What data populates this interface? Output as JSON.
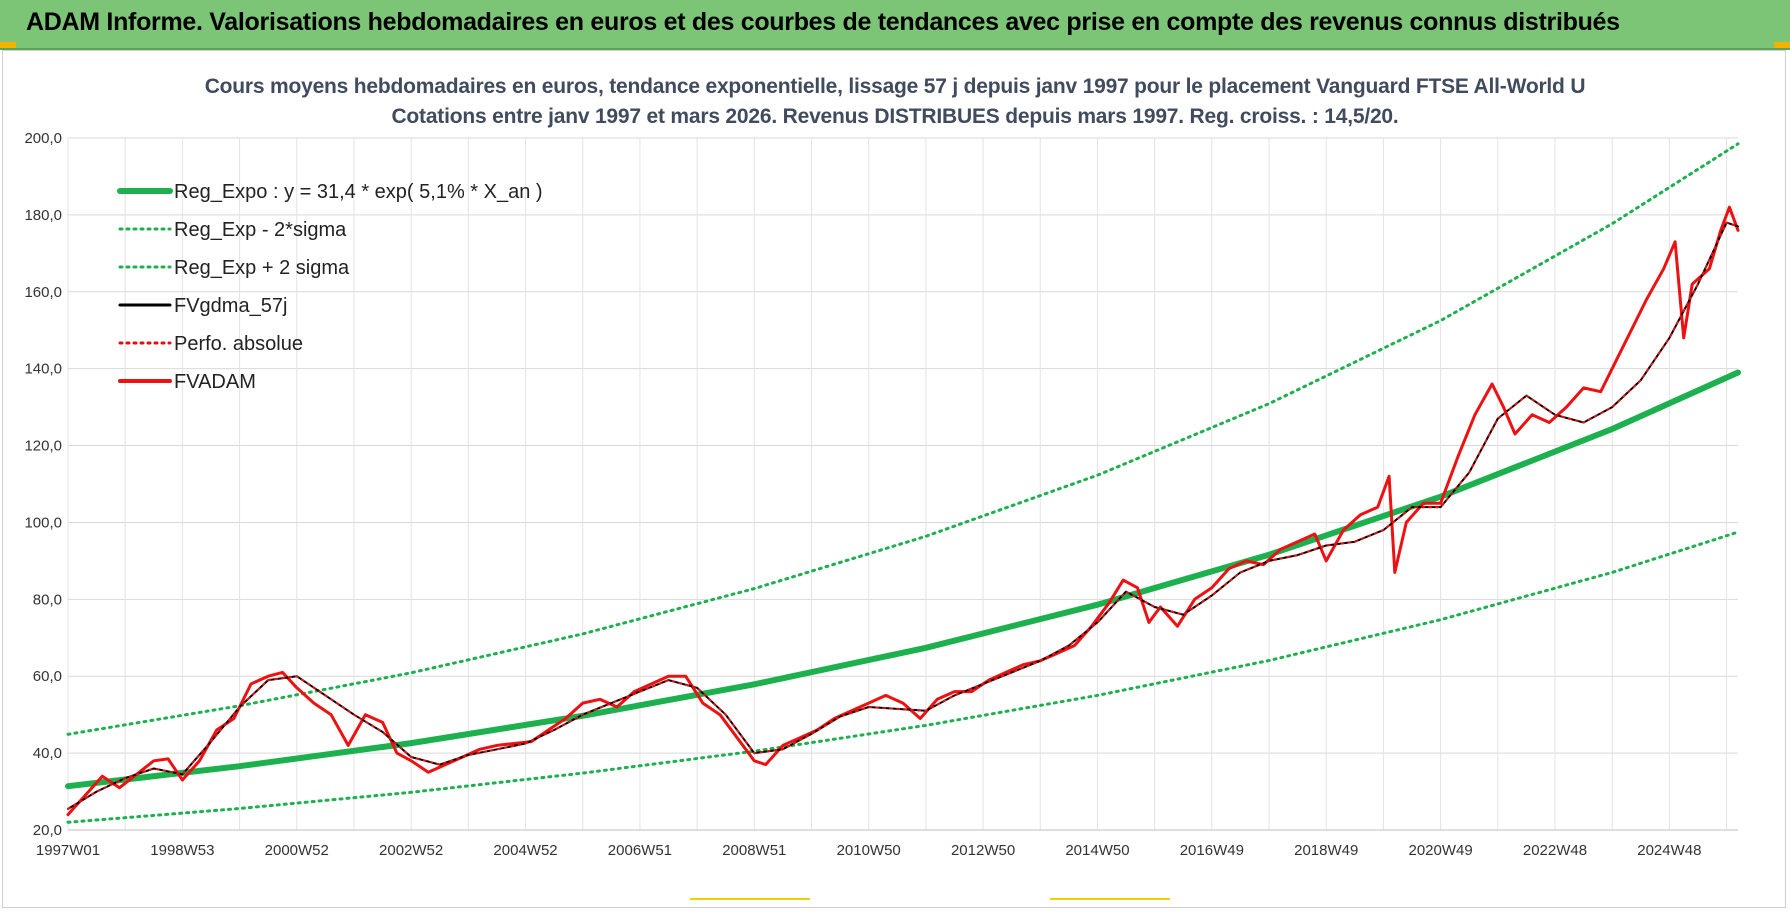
{
  "banner": {
    "title": "ADAM Informe. Valorisations hebdomadaires en euros et des courbes de tendances avec prise en compte des revenus connus distribués",
    "color": "#7cc576"
  },
  "chart_data": {
    "type": "line",
    "title": "Cours moyens hebdomadaires en euros, tendance exponentielle, lissage 57 j depuis janv 1997 pour le placement Vanguard FTSE All-World U",
    "subtitle": "Cotations entre janv 1997 et mars 2026. Revenus DISTRIBUES depuis mars 1997. Reg. croiss. : 14,5/20.",
    "xlabel": "",
    "ylabel": "",
    "ylim": [
      20,
      200
    ],
    "yticks": [
      "20,0",
      "40,0",
      "60,0",
      "80,0",
      "100,0",
      "120,0",
      "140,0",
      "160,0",
      "180,0",
      "200,0"
    ],
    "xlim": [
      1997.0,
      2026.2
    ],
    "xticks": [
      {
        "label": "1997W01",
        "x": 1997.0
      },
      {
        "label": "1998W53",
        "x": 1999.0
      },
      {
        "label": "2000W52",
        "x": 2001.0
      },
      {
        "label": "2002W52",
        "x": 2003.0
      },
      {
        "label": "2004W52",
        "x": 2005.0
      },
      {
        "label": "2006W51",
        "x": 2007.0
      },
      {
        "label": "2008W51",
        "x": 2009.0
      },
      {
        "label": "2010W50",
        "x": 2011.0
      },
      {
        "label": "2012W50",
        "x": 2013.0
      },
      {
        "label": "2014W50",
        "x": 2015.0
      },
      {
        "label": "2016W49",
        "x": 2017.0
      },
      {
        "label": "2018W49",
        "x": 2019.0
      },
      {
        "label": "2020W49",
        "x": 2021.0
      },
      {
        "label": "2022W48",
        "x": 2023.0
      },
      {
        "label": "2024W48",
        "x": 2025.0
      }
    ],
    "grid": true,
    "legend_position": "top-left",
    "series": [
      {
        "name": "Reg_Expo : y = 31,4 * exp( 5,1% *  X_an )",
        "color": "#1db04e",
        "style": "solid-thick",
        "x": [
          1997,
          2000,
          2003,
          2006,
          2009,
          2012,
          2015,
          2018,
          2021,
          2024,
          2026.2
        ],
        "y": [
          31.4,
          36.6,
          42.6,
          49.7,
          57.9,
          67.4,
          78.6,
          91.6,
          106.7,
          124.3,
          139.0
        ]
      },
      {
        "name": "Reg_Exp - 2*sigma",
        "color": "#1db04e",
        "style": "dotted",
        "x": [
          1997,
          2000,
          2003,
          2006,
          2009,
          2012,
          2015,
          2018,
          2021,
          2024,
          2026.2
        ],
        "y": [
          22.0,
          25.6,
          29.8,
          34.8,
          40.5,
          47.2,
          55.0,
          64.1,
          74.7,
          87.0,
          97.5
        ]
      },
      {
        "name": "Reg_Exp + 2 sigma",
        "color": "#1db04e",
        "style": "dotted",
        "x": [
          1997,
          2000,
          2003,
          2006,
          2009,
          2012,
          2015,
          2018,
          2021,
          2024,
          2026.2
        ],
        "y": [
          44.9,
          52.3,
          60.9,
          71.0,
          82.8,
          96.4,
          112.3,
          130.9,
          152.5,
          177.7,
          198.5
        ]
      },
      {
        "name": "FVgdma_57j",
        "color": "#000000",
        "style": "solid",
        "x": [
          1997.0,
          1997.5,
          1998.0,
          1998.5,
          1999.0,
          1999.5,
          2000.0,
          2000.5,
          2001.0,
          2001.5,
          2002.0,
          2002.5,
          2003.0,
          2003.5,
          2004.0,
          2004.5,
          2005.0,
          2005.5,
          2006.0,
          2006.5,
          2007.0,
          2007.5,
          2008.0,
          2008.5,
          2009.0,
          2009.5,
          2010.0,
          2010.5,
          2011.0,
          2011.5,
          2012.0,
          2012.5,
          2013.0,
          2013.5,
          2014.0,
          2014.5,
          2015.0,
          2015.5,
          2016.0,
          2016.5,
          2017.0,
          2017.5,
          2018.0,
          2018.5,
          2019.0,
          2019.5,
          2020.0,
          2020.5,
          2021.0,
          2021.5,
          2022.0,
          2022.5,
          2023.0,
          2023.5,
          2024.0,
          2024.5,
          2025.0,
          2025.5,
          2026.0,
          2026.2
        ],
        "y": [
          25.5,
          30.0,
          33.5,
          36.0,
          34.5,
          43.0,
          52.0,
          59.0,
          60.0,
          55.0,
          50.0,
          45.5,
          39.0,
          37.0,
          39.5,
          41.0,
          42.5,
          46.0,
          50.0,
          53.0,
          56.0,
          59.0,
          57.0,
          50.0,
          40.0,
          41.0,
          45.0,
          49.5,
          52.0,
          51.5,
          51.0,
          55.0,
          58.0,
          61.0,
          64.0,
          68.0,
          74.0,
          82.0,
          78.0,
          76.0,
          81.0,
          87.0,
          90.0,
          91.5,
          94.0,
          95.0,
          98.0,
          104.0,
          104.0,
          113.0,
          127.0,
          133.0,
          128.0,
          126.0,
          130.0,
          137.0,
          148.0,
          162.0,
          178.0,
          177.0
        ]
      },
      {
        "name": "Perfo. absolue",
        "color": "#e01010",
        "style": "dotted",
        "x": [
          1997.0,
          1997.5,
          1998.0,
          1998.5,
          1999.0,
          1999.5,
          2000.0,
          2000.5,
          2001.0,
          2001.5,
          2002.0,
          2002.5,
          2003.0,
          2003.5,
          2004.0,
          2004.5,
          2005.0,
          2005.5,
          2006.0,
          2006.5,
          2007.0,
          2007.5,
          2008.0,
          2008.5,
          2009.0,
          2009.5,
          2010.0,
          2010.5,
          2011.0,
          2011.5,
          2012.0,
          2012.5,
          2013.0,
          2013.5,
          2014.0,
          2014.5,
          2015.0,
          2015.5,
          2016.0,
          2016.5,
          2017.0,
          2017.5,
          2018.0,
          2018.5,
          2019.0,
          2019.5,
          2020.0,
          2020.5,
          2021.0,
          2021.5,
          2022.0,
          2022.5,
          2023.0,
          2023.5,
          2024.0,
          2024.5,
          2025.0,
          2025.5,
          2026.0,
          2026.2
        ],
        "y": [
          25.5,
          30.0,
          33.5,
          36.0,
          34.5,
          43.0,
          52.0,
          59.0,
          60.0,
          55.0,
          50.0,
          45.5,
          39.0,
          37.0,
          39.5,
          41.0,
          42.5,
          46.0,
          50.0,
          53.0,
          56.0,
          59.0,
          57.0,
          50.0,
          40.0,
          41.0,
          45.0,
          49.5,
          52.0,
          51.5,
          51.0,
          55.0,
          58.0,
          61.0,
          64.0,
          68.0,
          74.0,
          82.0,
          78.0,
          76.0,
          81.0,
          87.0,
          90.0,
          91.5,
          94.0,
          95.0,
          98.0,
          104.0,
          104.0,
          113.0,
          127.0,
          133.0,
          128.0,
          126.0,
          130.0,
          137.0,
          148.0,
          162.0,
          178.0,
          177.0
        ]
      },
      {
        "name": "FVADAM",
        "color": "#ee1111",
        "style": "solid-thick",
        "x": [
          1997.0,
          1997.3,
          1997.6,
          1997.9,
          1998.2,
          1998.5,
          1998.75,
          1999.0,
          1999.3,
          1999.6,
          1999.9,
          2000.2,
          2000.5,
          2000.75,
          2001.0,
          2001.3,
          2001.6,
          2001.9,
          2002.2,
          2002.5,
          2002.75,
          2003.0,
          2003.3,
          2003.6,
          2003.9,
          2004.2,
          2004.5,
          2004.8,
          2005.1,
          2005.4,
          2005.7,
          2006.0,
          2006.3,
          2006.6,
          2006.9,
          2007.2,
          2007.5,
          2007.8,
          2008.1,
          2008.4,
          2008.7,
          2009.0,
          2009.2,
          2009.5,
          2009.8,
          2010.1,
          2010.4,
          2010.7,
          2011.0,
          2011.3,
          2011.6,
          2011.9,
          2012.2,
          2012.5,
          2012.8,
          2013.1,
          2013.4,
          2013.7,
          2014.0,
          2014.3,
          2014.6,
          2014.9,
          2015.2,
          2015.45,
          2015.7,
          2015.9,
          2016.1,
          2016.4,
          2016.7,
          2017.0,
          2017.3,
          2017.6,
          2017.9,
          2018.2,
          2018.5,
          2018.8,
          2019.0,
          2019.3,
          2019.6,
          2019.9,
          2020.1,
          2020.2,
          2020.4,
          2020.7,
          2021.0,
          2021.3,
          2021.6,
          2021.9,
          2022.1,
          2022.3,
          2022.6,
          2022.9,
          2023.2,
          2023.5,
          2023.8,
          2024.1,
          2024.4,
          2024.6,
          2024.9,
          2025.1,
          2025.25,
          2025.4,
          2025.7,
          2025.9,
          2026.05,
          2026.2
        ],
        "y": [
          24.0,
          29.0,
          34.0,
          31.0,
          34.5,
          38.0,
          38.5,
          33.0,
          38.0,
          46.0,
          49.0,
          58.0,
          60.0,
          61.0,
          57.0,
          53.0,
          50.0,
          42.0,
          50.0,
          48.0,
          40.0,
          38.0,
          35.0,
          37.0,
          39.0,
          41.0,
          42.0,
          42.5,
          43.0,
          46.0,
          49.0,
          53.0,
          54.0,
          52.0,
          56.0,
          58.0,
          60.0,
          60.0,
          53.0,
          50.0,
          44.0,
          38.0,
          37.0,
          42.0,
          44.0,
          46.0,
          49.0,
          51.0,
          53.0,
          55.0,
          53.0,
          49.0,
          54.0,
          56.0,
          56.0,
          59.0,
          61.0,
          63.0,
          64.0,
          66.0,
          68.0,
          73.0,
          79.0,
          85.0,
          83.0,
          74.0,
          78.0,
          73.0,
          80.0,
          83.0,
          88.0,
          90.0,
          89.0,
          93.0,
          95.0,
          97.0,
          90.0,
          98.0,
          102.0,
          104.0,
          112.0,
          87.0,
          100.0,
          105.0,
          105.0,
          117.0,
          128.0,
          136.0,
          130.0,
          123.0,
          128.0,
          126.0,
          130.0,
          135.0,
          134.0,
          143.0,
          152.0,
          158.0,
          166.0,
          173.0,
          148.0,
          162.0,
          166.0,
          176.0,
          182.0,
          176.0
        ]
      }
    ]
  }
}
